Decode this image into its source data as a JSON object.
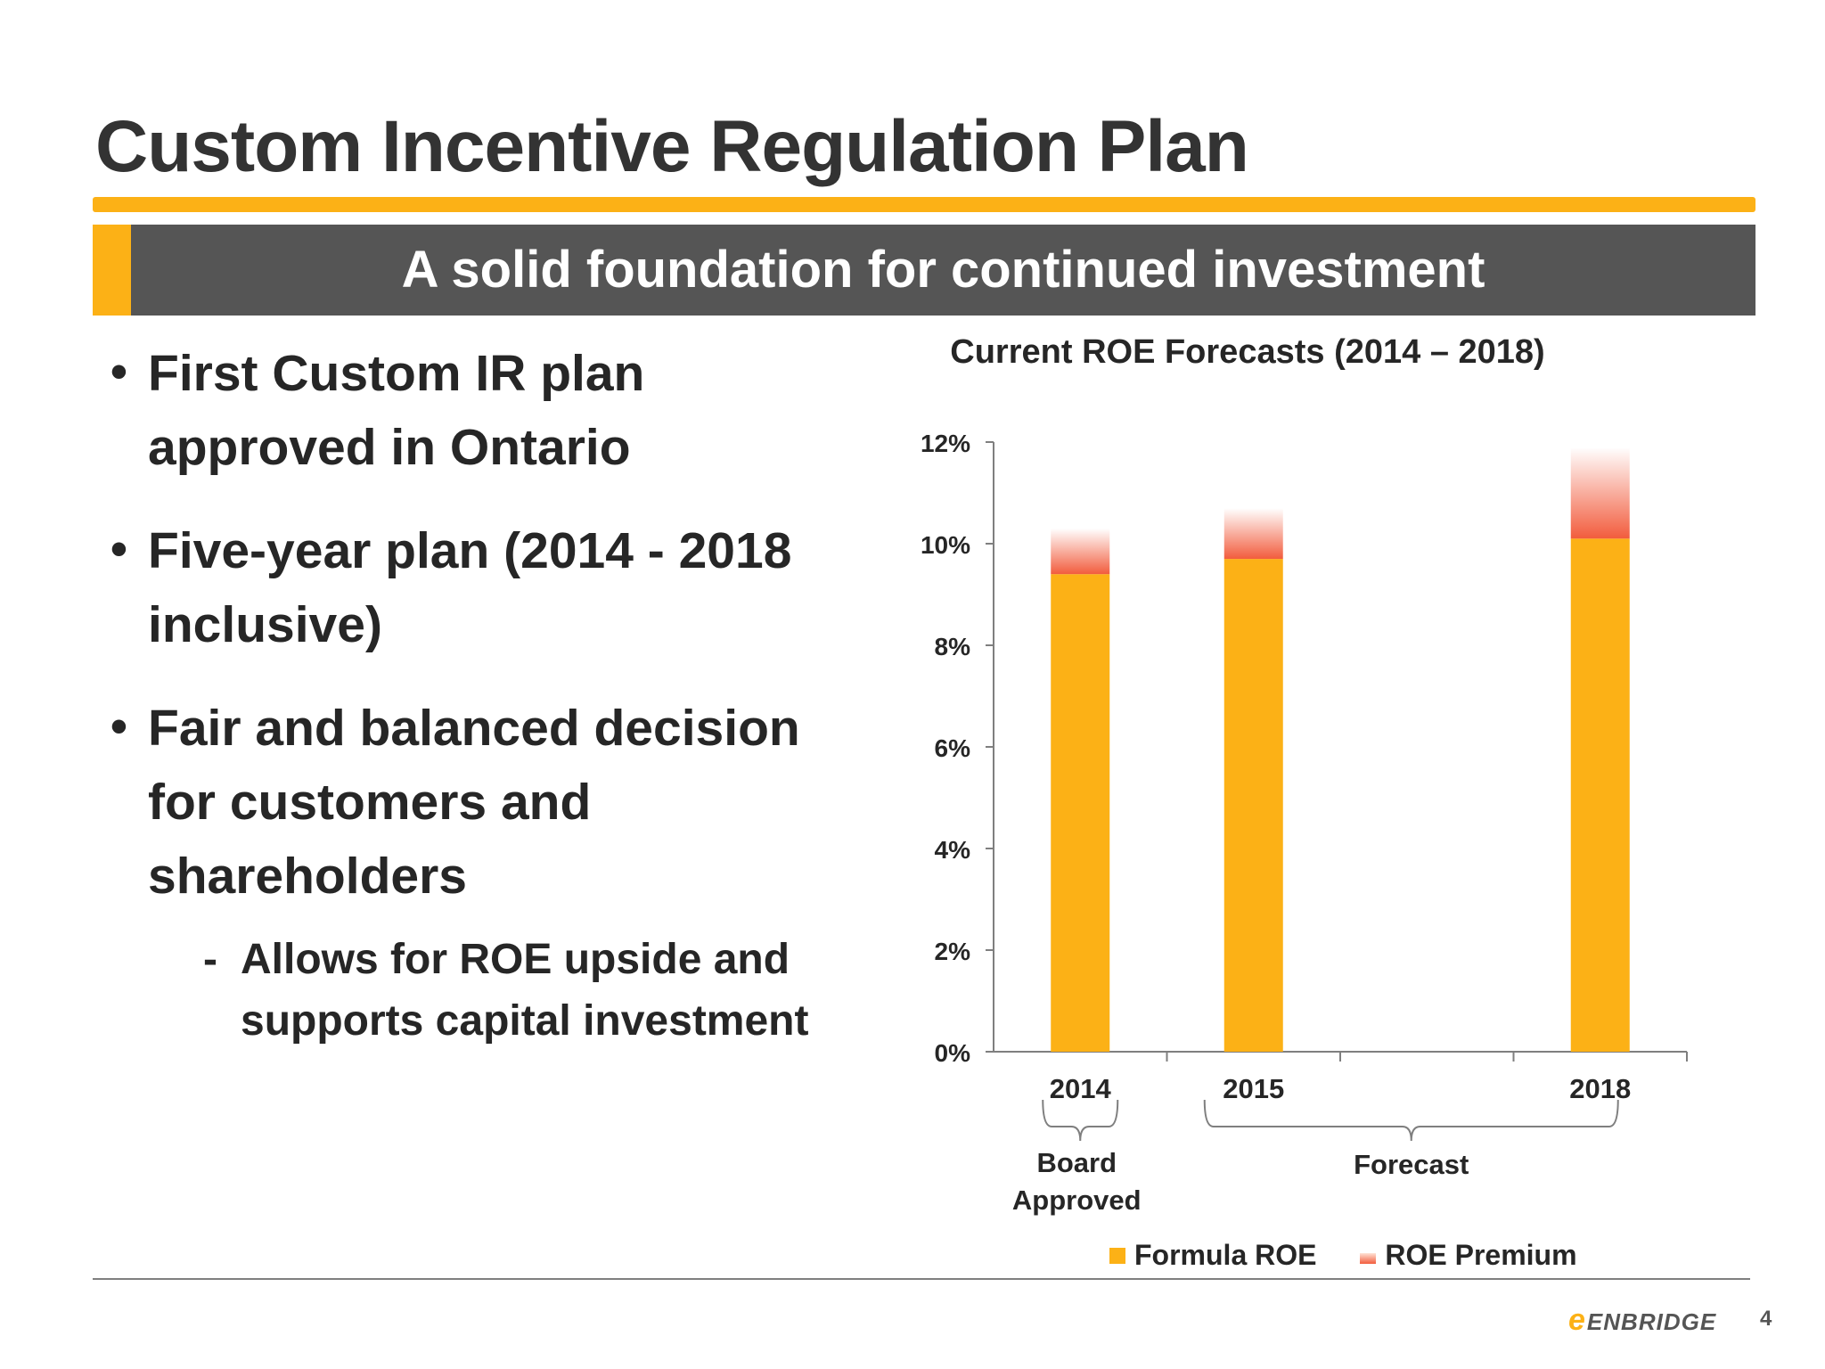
{
  "slide": {
    "title": "Custom Incentive Regulation Plan",
    "banner": "A solid foundation for continued investment",
    "bullets": [
      "First Custom IR plan approved in Ontario",
      "Five-year plan (2014 - 2018 inclusive)",
      "Fair and balanced decision for customers and shareholders"
    ],
    "sub_bullet": "Allows for ROE upside and supports capital investment",
    "sub_bullet_dash": "-",
    "logo": "ENBRIDGE",
    "logo_mark": "e",
    "page_number": "4"
  },
  "colors": {
    "accent": "#fcb116",
    "banner": "#555555",
    "formula_roe": "#fcb116",
    "roe_premium": "#f25c3d"
  },
  "chart_data": {
    "type": "bar",
    "stacked": true,
    "title": "Current ROE Forecasts (2014 – 2018)",
    "categories": [
      "2014",
      "2015",
      "",
      "2018"
    ],
    "series": [
      {
        "name": "Formula ROE",
        "values": [
          9.4,
          9.7,
          null,
          10.1
        ]
      },
      {
        "name": "ROE Premium",
        "values": [
          0.9,
          1.0,
          null,
          1.8
        ]
      }
    ],
    "ylim": [
      0,
      12
    ],
    "yticks": [
      "0%",
      "2%",
      "4%",
      "6%",
      "8%",
      "10%",
      "12%"
    ],
    "grid": false,
    "legend": "bottom",
    "annotations": {
      "board_approved": [
        "Board",
        "Approved"
      ],
      "forecast": "Forecast"
    }
  }
}
